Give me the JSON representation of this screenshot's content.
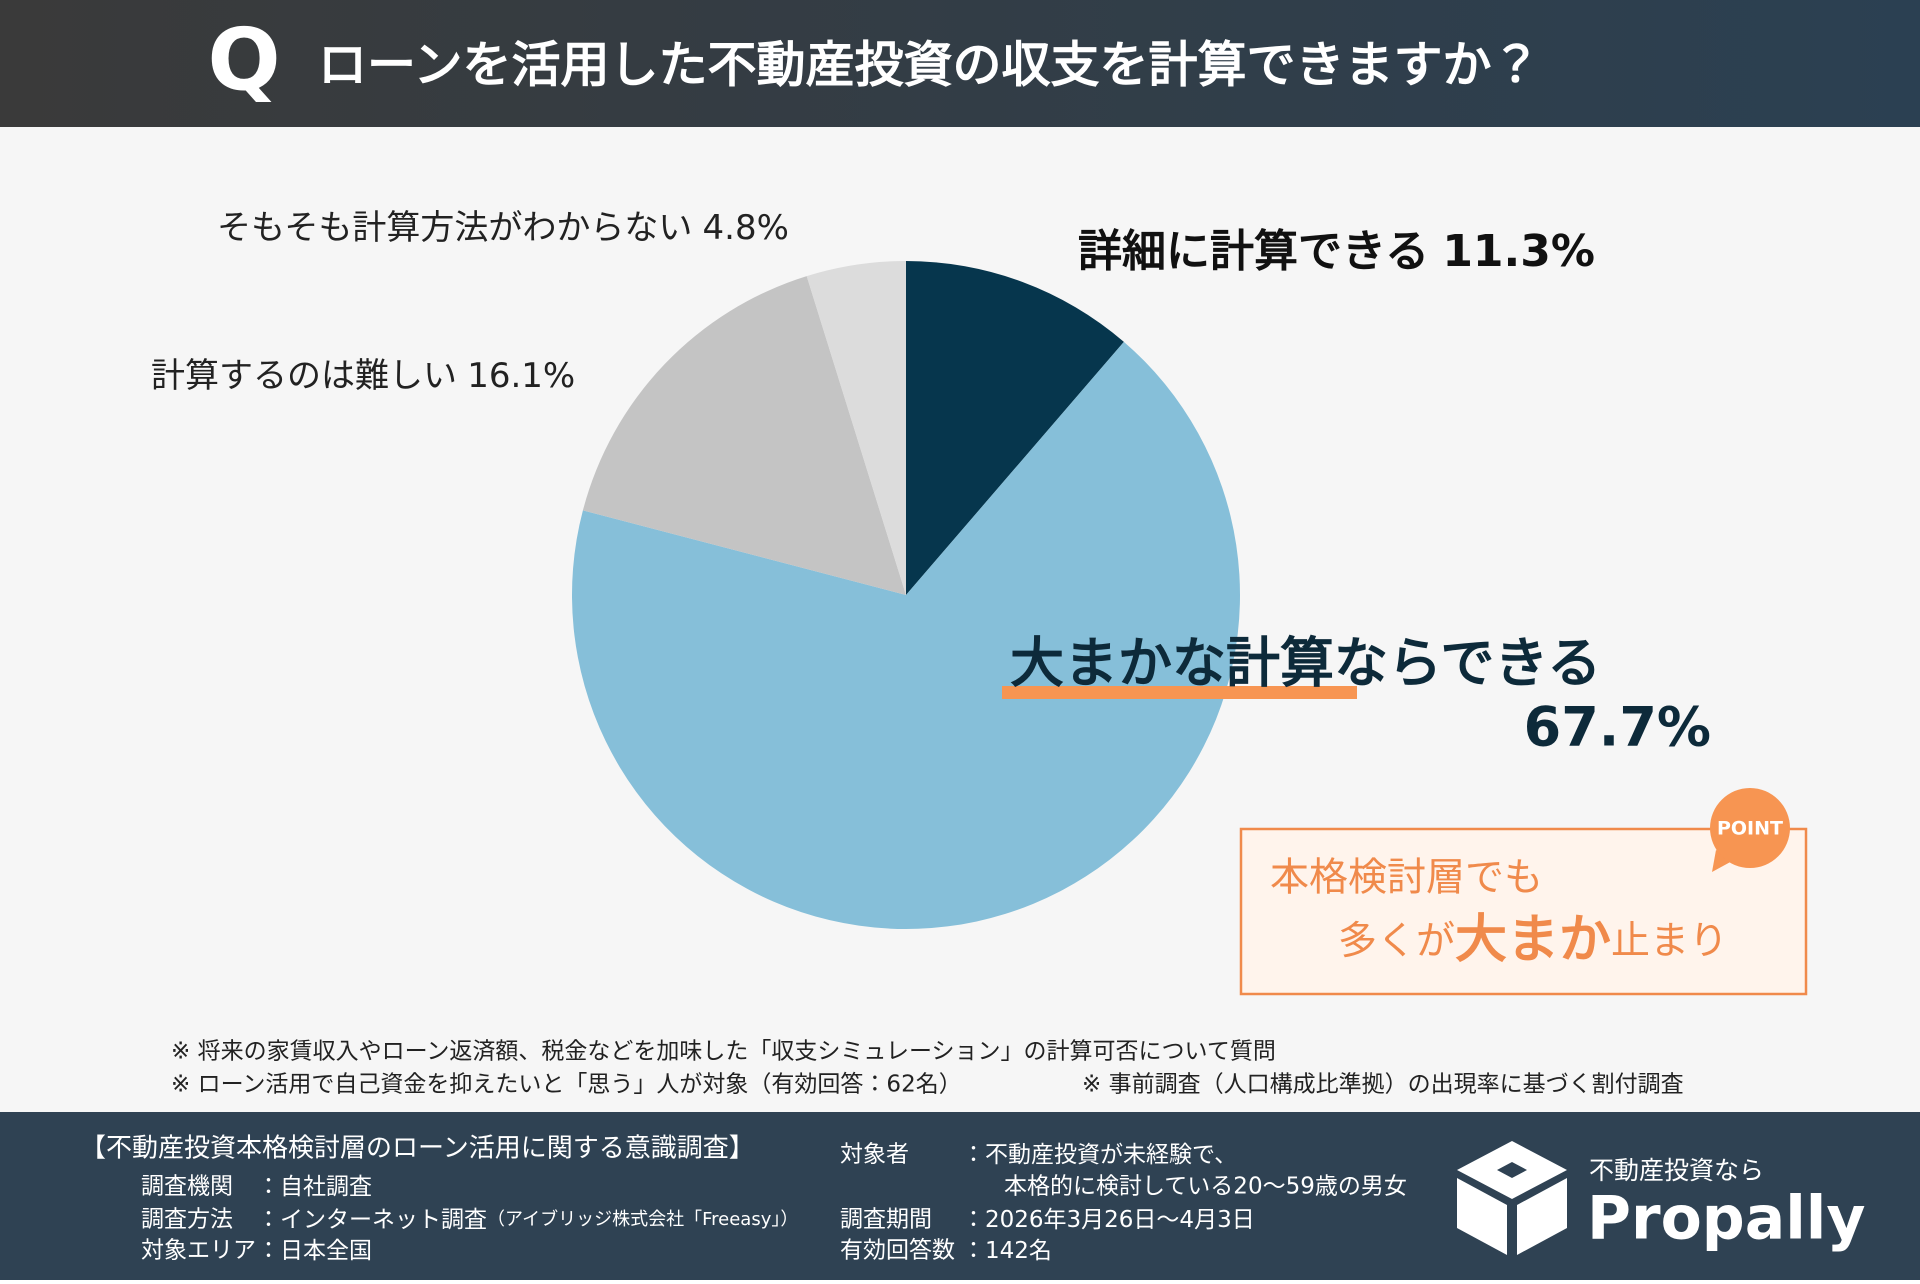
{
  "header": {
    "mark": "Q",
    "title": "ローンを活用した不動産投資の収支を計算できますか？"
  },
  "chart_data": {
    "type": "pie",
    "categories": [
      "詳細に計算できる",
      "大まかな計算ならできる",
      "計算するのは難しい",
      "そもそも計算方法がわからない"
    ],
    "values": [
      11.3,
      67.7,
      16.1,
      4.8
    ],
    "value_labels": [
      "11.3%",
      "67.7%",
      "16.1%",
      "4.8%"
    ],
    "colors": [
      "#06364d",
      "#86bfd9",
      "#c4c4c4",
      "#dcdcdc"
    ]
  },
  "point": {
    "badge": "POINT",
    "line1": "本格検討層でも",
    "line2_pre": "多くが",
    "line2_emph": "大まか",
    "line2_post": "止まり"
  },
  "notes": [
    "※ 将来の家賃収入やローン返済額、税金などを加味した「収支シミュレーション」の計算可否について質問",
    "※ ローン活用で自己資金を抑えたいと「思う」人が対象（有効回答：62名）",
    "※ 事前調査（人口構成比準拠）の出現率に基づく割付調査"
  ],
  "survey": {
    "title": "【不動産投資本格検討層のローン活用に関する意識調査】",
    "left": [
      {
        "label": "調査機関",
        "value": "：自社調査"
      },
      {
        "label": "調査方法",
        "value": "：インターネット調査",
        "sub": "（アイブリッジ株式会社「Freeasy」）"
      },
      {
        "label": "対象エリア",
        "value": "：日本全国"
      }
    ],
    "right": [
      {
        "label": "対象者",
        "value": "：不動産投資が未経験で、",
        "cont": "本格的に検討している20〜59歳の男女"
      },
      {
        "label": "調査期間",
        "value": "：2026年3月26日〜4月3日"
      },
      {
        "label": "有効回答数",
        "value": "：142名"
      }
    ]
  },
  "logo": {
    "tagline": "不動産投資なら",
    "name": "Propally"
  }
}
